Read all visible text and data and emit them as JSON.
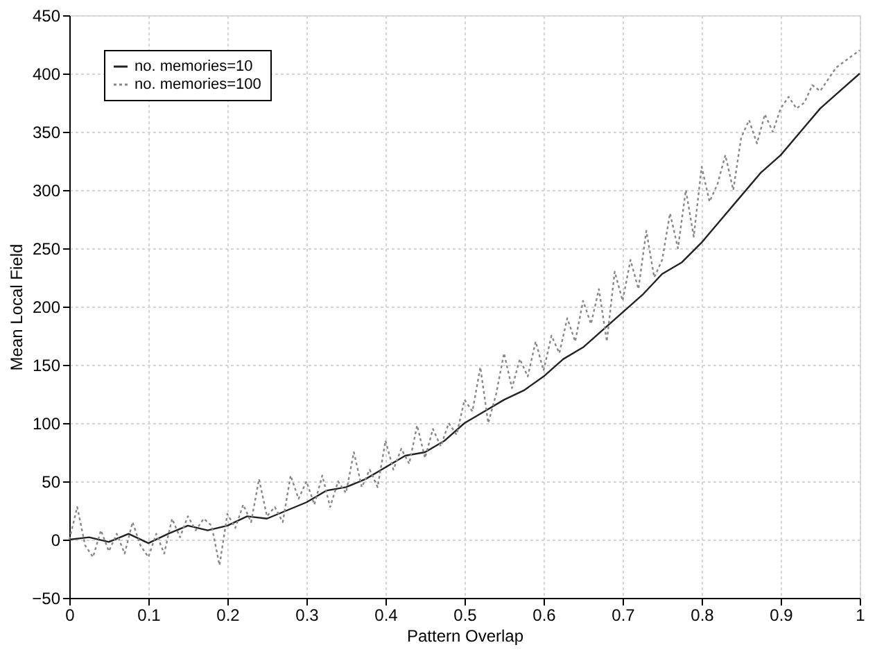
{
  "chart_data": {
    "type": "line",
    "xlabel": "Pattern Overlap",
    "ylabel": "Mean Local Field",
    "xlim": [
      0,
      1
    ],
    "ylim": [
      -50,
      450
    ],
    "xticks": [
      0,
      0.1,
      0.2,
      0.3,
      0.4,
      0.5,
      0.6,
      0.7,
      0.8,
      0.9,
      1
    ],
    "yticks": [
      -50,
      0,
      50,
      100,
      150,
      200,
      250,
      300,
      350,
      400,
      450
    ],
    "grid": true,
    "legend": "top left",
    "marker": "none",
    "series": [
      {
        "name": "no. memories=10",
        "color": "#222222",
        "line_style": "solid",
        "x": [
          0,
          0.025,
          0.05,
          0.075,
          0.1,
          0.125,
          0.15,
          0.175,
          0.2,
          0.225,
          0.25,
          0.275,
          0.3,
          0.325,
          0.35,
          0.375,
          0.4,
          0.425,
          0.45,
          0.475,
          0.5,
          0.525,
          0.55,
          0.575,
          0.6,
          0.625,
          0.65,
          0.675,
          0.7,
          0.725,
          0.75,
          0.775,
          0.8,
          0.825,
          0.85,
          0.875,
          0.9,
          0.925,
          0.95,
          0.975,
          1
        ],
        "values": [
          0,
          2,
          -2,
          5,
          -3,
          5,
          12,
          8,
          12,
          20,
          18,
          25,
          32,
          42,
          45,
          52,
          62,
          72,
          75,
          85,
          100,
          110,
          120,
          128,
          140,
          155,
          165,
          180,
          195,
          210,
          228,
          238,
          255,
          275,
          295,
          315,
          330,
          350,
          370,
          385,
          400
        ]
      },
      {
        "name": "no. memories=100",
        "color": "#888888",
        "line_style": "dotted",
        "x": [
          0,
          0.01,
          0.02,
          0.03,
          0.04,
          0.05,
          0.06,
          0.07,
          0.08,
          0.09,
          0.1,
          0.11,
          0.12,
          0.13,
          0.14,
          0.15,
          0.16,
          0.17,
          0.18,
          0.19,
          0.2,
          0.21,
          0.22,
          0.23,
          0.24,
          0.25,
          0.26,
          0.27,
          0.28,
          0.29,
          0.3,
          0.31,
          0.32,
          0.33,
          0.34,
          0.35,
          0.36,
          0.37,
          0.38,
          0.39,
          0.4,
          0.41,
          0.42,
          0.43,
          0.44,
          0.45,
          0.46,
          0.47,
          0.48,
          0.49,
          0.5,
          0.51,
          0.52,
          0.53,
          0.54,
          0.55,
          0.56,
          0.57,
          0.58,
          0.59,
          0.6,
          0.61,
          0.62,
          0.63,
          0.64,
          0.65,
          0.66,
          0.67,
          0.68,
          0.69,
          0.7,
          0.71,
          0.72,
          0.73,
          0.74,
          0.75,
          0.76,
          0.77,
          0.78,
          0.79,
          0.8,
          0.81,
          0.82,
          0.83,
          0.84,
          0.85,
          0.86,
          0.87,
          0.88,
          0.89,
          0.9,
          0.91,
          0.92,
          0.93,
          0.94,
          0.95,
          0.96,
          0.97,
          0.98,
          0.99,
          1
        ],
        "values": [
          0,
          28,
          -5,
          -15,
          8,
          -10,
          5,
          -12,
          15,
          -5,
          -15,
          5,
          -12,
          18,
          2,
          20,
          8,
          18,
          12,
          -22,
          22,
          10,
          30,
          15,
          52,
          20,
          28,
          15,
          55,
          35,
          50,
          30,
          55,
          28,
          50,
          40,
          75,
          45,
          60,
          45,
          85,
          60,
          78,
          65,
          98,
          70,
          95,
          80,
          100,
          90,
          120,
          110,
          148,
          100,
          125,
          160,
          130,
          155,
          140,
          170,
          145,
          175,
          160,
          190,
          170,
          205,
          185,
          215,
          170,
          230,
          205,
          240,
          215,
          265,
          225,
          240,
          280,
          250,
          300,
          260,
          320,
          290,
          305,
          330,
          300,
          345,
          360,
          340,
          365,
          350,
          370,
          380,
          370,
          375,
          390,
          385,
          395,
          405,
          410,
          415,
          420
        ]
      }
    ]
  }
}
